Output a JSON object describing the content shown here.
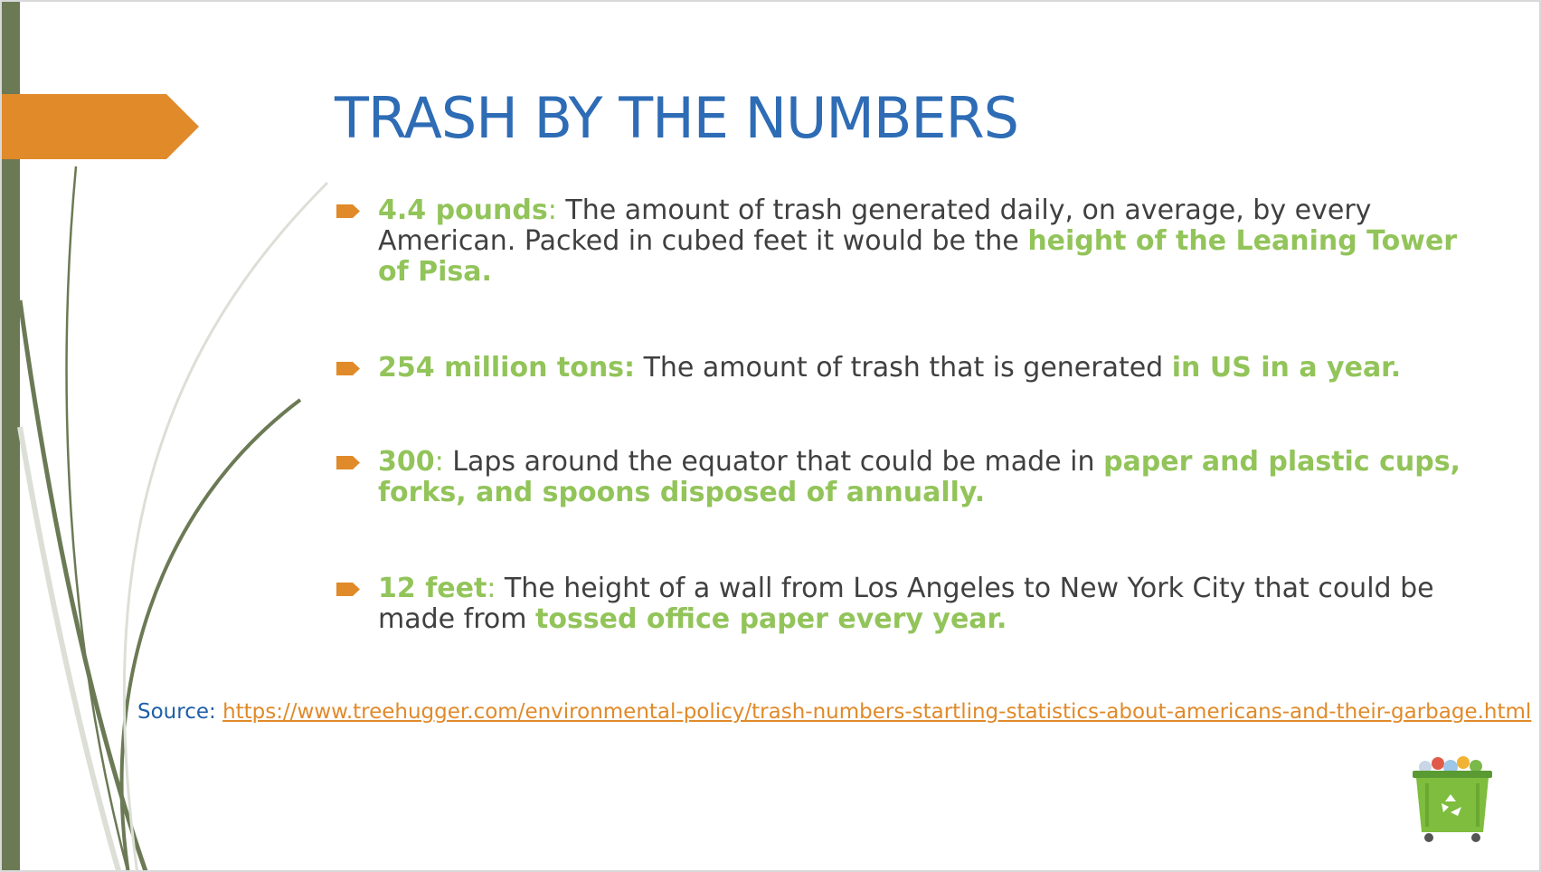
{
  "title": "TRASH BY THE NUMBERS",
  "bullets": [
    {
      "label": "4.4 pounds",
      "sep": ":",
      "text": " The amount of trash generated daily, on average, by every American. Packed in cubed feet it would be the ",
      "highlight": "height of the Leaning Tower of Pisa."
    },
    {
      "label": "254 million tons:",
      "text": " The amount of trash that is generated ",
      "highlight": "in US in a year."
    },
    {
      "label": "300",
      "sep": ":",
      "text": " Laps around the equator that could be made in ",
      "highlight": "paper and plastic cups, forks, and spoons disposed of annually."
    },
    {
      "label": "12 feet",
      "sep": ":",
      "text": " The height of a wall from Los Angeles to New York City that could be made from ",
      "highlight": "tossed office paper every year."
    }
  ],
  "source": {
    "label": "Source: ",
    "link": "https://www.treehugger.com/environmental-policy/trash-numbers-startling-statistics-about-americans-and-their-garbage.html"
  },
  "colors": {
    "title": "#2e6cb5",
    "highlight": "#92c45a",
    "accent_orange": "#e08a2a",
    "left_bar": "#6b7a55"
  },
  "icons": {
    "bullet": "arrow-bullet-icon",
    "bin": "recycle-bin-icon"
  }
}
